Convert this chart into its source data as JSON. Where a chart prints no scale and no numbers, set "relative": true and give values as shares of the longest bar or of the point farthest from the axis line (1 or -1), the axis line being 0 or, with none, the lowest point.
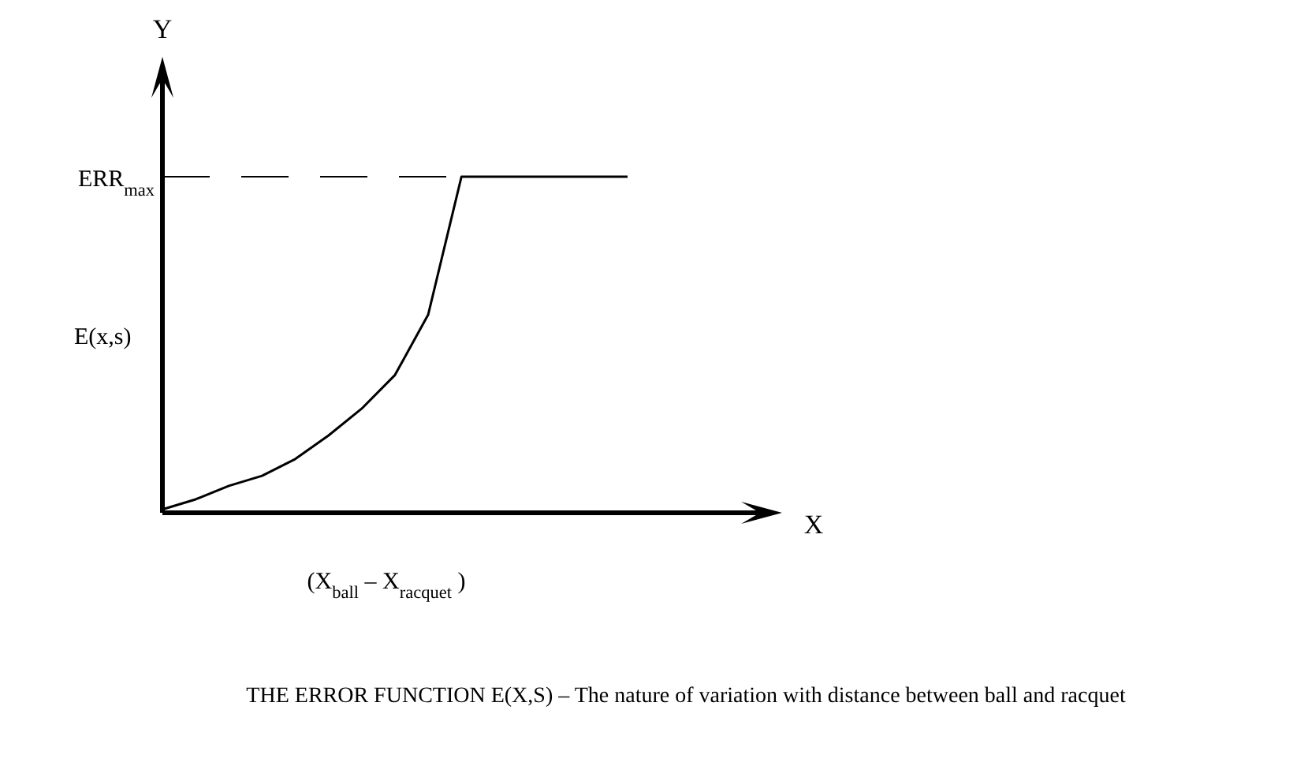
{
  "chart_data": {
    "type": "line",
    "relative": true,
    "title": "THE ERROR FUNCTION E(X,S)  – The nature of variation with distance between ball and racquet",
    "xlabel": "(X$_{ball}$  –  X$_{racquet}$ )",
    "ylabel": "E(x,s)",
    "annotations": [
      "Y",
      "X"
    ],
    "categories": [
      null,
      null,
      null,
      null,
      null,
      null,
      null,
      null,
      null,
      null,
      null,
      null,
      null,
      null,
      null
    ],
    "values": [
      0.01,
      0.04,
      0.08,
      0.11,
      0.16,
      0.23,
      0.31,
      0.41,
      0.59,
      1,
      1,
      1,
      1,
      1,
      1
    ],
    "color": "#000000",
    "ref_lines": [
      {
        "axis": "y",
        "value": 1,
        "label": "ERR$_{max}$",
        "line_style": "dashed"
      }
    ]
  }
}
